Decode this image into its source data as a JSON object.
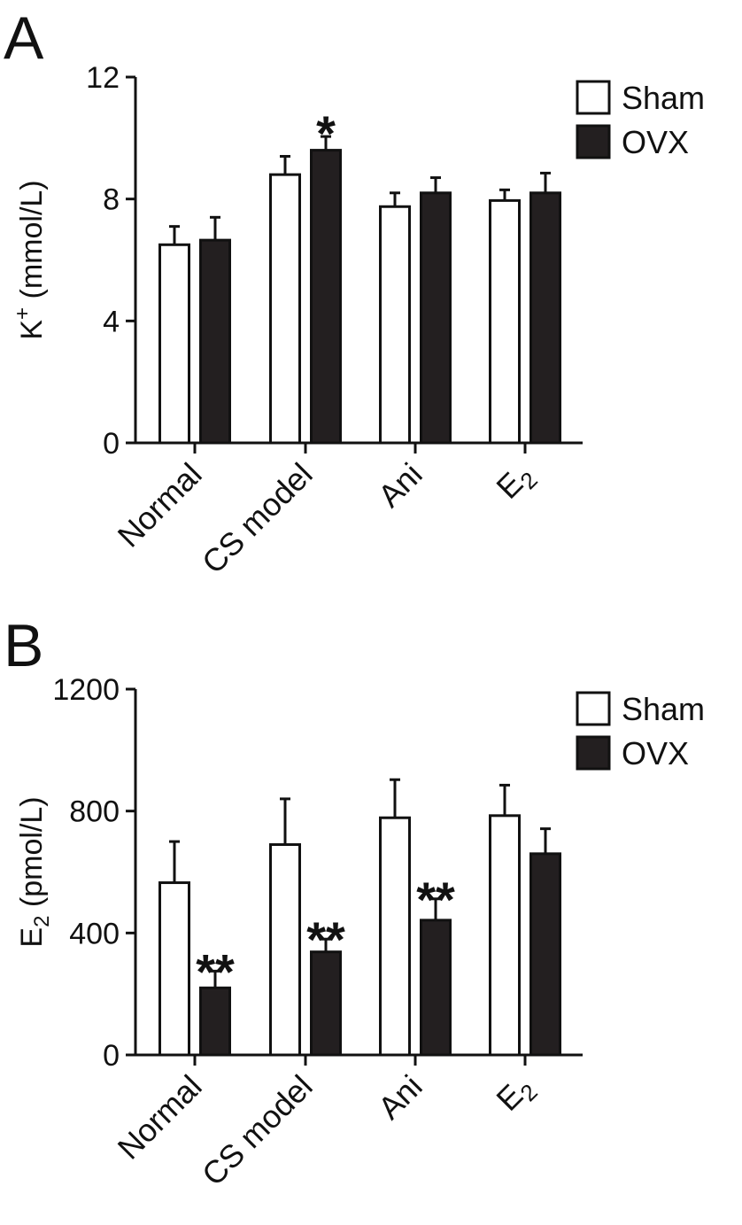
{
  "chart_data": [
    {
      "type": "bar",
      "panel": "A",
      "categories": [
        "Normal",
        "CS model",
        "Ani",
        "E2"
      ],
      "series": [
        {
          "name": "Sham",
          "color": "#ffffff",
          "values": [
            6.5,
            8.8,
            7.75,
            7.95
          ],
          "errors": [
            0.6,
            0.6,
            0.45,
            0.35
          ]
        },
        {
          "name": "OVX",
          "color": "#231f20",
          "values": [
            6.65,
            9.6,
            8.2,
            8.2
          ],
          "errors": [
            0.75,
            0.45,
            0.5,
            0.65
          ]
        }
      ],
      "significance": [
        {
          "category": 1,
          "series": 1,
          "label": "*"
        }
      ],
      "ylabel_main": "K",
      "ylabel_sup": "+",
      "ylabel_unit": " (mmol/L)",
      "ylim": [
        0,
        12
      ],
      "yticks": [
        0,
        4,
        8,
        12
      ],
      "ytick_labels": [
        "0",
        "4",
        "8",
        "12"
      ],
      "legend": "top-right",
      "grid": false
    },
    {
      "type": "bar",
      "panel": "B",
      "categories": [
        "Normal",
        "CS model",
        "Ani",
        "E2"
      ],
      "series": [
        {
          "name": "Sham",
          "color": "#ffffff",
          "values": [
            565,
            690,
            778,
            785
          ],
          "errors": [
            135,
            150,
            125,
            100
          ]
        },
        {
          "name": "OVX",
          "color": "#231f20",
          "values": [
            220,
            338,
            442,
            660
          ],
          "errors": [
            55,
            42,
            70,
            82
          ]
        }
      ],
      "significance": [
        {
          "category": 0,
          "series": 1,
          "label": "**"
        },
        {
          "category": 1,
          "series": 1,
          "label": "**"
        },
        {
          "category": 2,
          "series": 1,
          "label": "**"
        }
      ],
      "ylabel_main": "E",
      "ylabel_sub": "2",
      "ylabel_unit": " (pmol/L)",
      "ylim": [
        0,
        1200
      ],
      "yticks": [
        0,
        400,
        800,
        1200
      ],
      "ytick_labels": [
        "0",
        "400",
        "800",
        "1200"
      ],
      "legend": "top-right",
      "grid": false
    }
  ]
}
